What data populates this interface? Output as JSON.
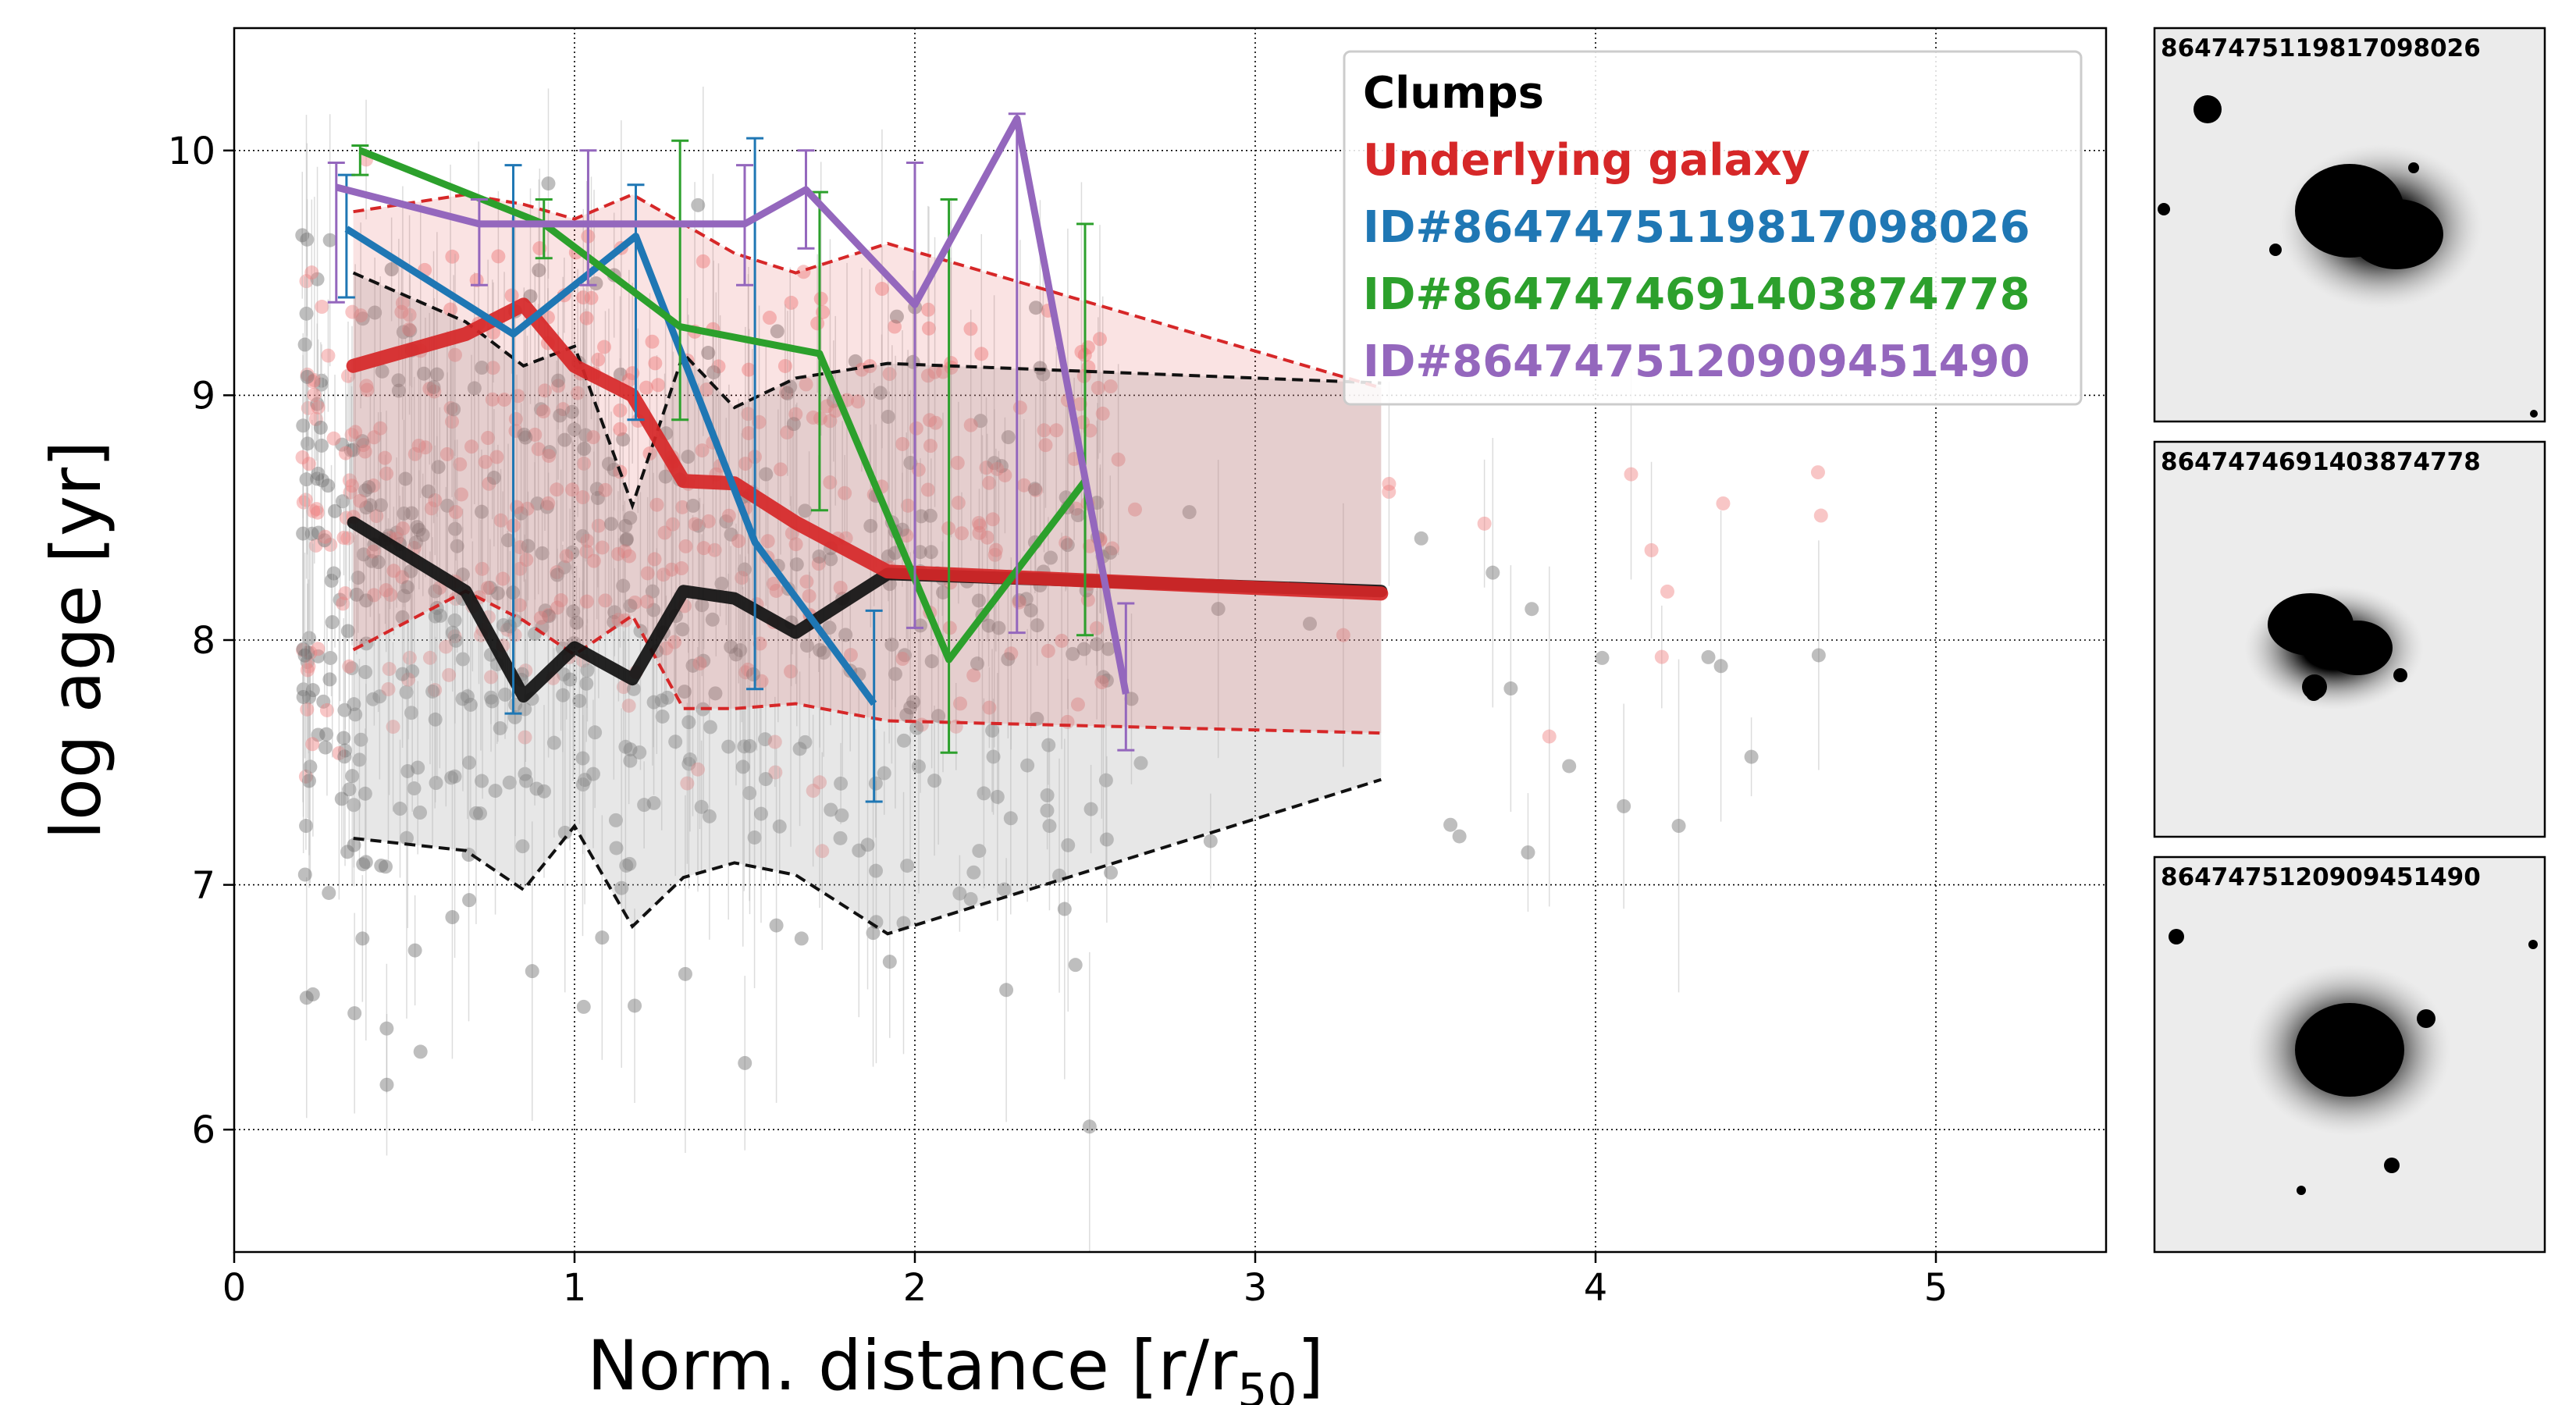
{
  "chart_data": {
    "type": "scatter",
    "xlabel": "Norm. distance [r/r",
    "xlabel_sub": "50",
    "xlabel_end": "]",
    "ylabel": "log age [yr]",
    "xlim": [
      0,
      5.5
    ],
    "ylim": [
      5.5,
      10.5
    ],
    "x_ticks": [
      0,
      1,
      2,
      3,
      4,
      5
    ],
    "y_ticks": [
      6,
      7,
      8,
      9,
      10
    ],
    "grid": true,
    "legend_position": "top-right",
    "legend": [
      {
        "label": "Clumps",
        "color": "#000000"
      },
      {
        "label": "Underlying galaxy",
        "color": "#d62728"
      },
      {
        "label": "ID#8647475119817098026",
        "color": "#1f77b4"
      },
      {
        "label": "ID#8647474691403874778",
        "color": "#2ca02c"
      },
      {
        "label": "ID#8647475120909451490",
        "color": "#9467bd"
      }
    ],
    "clumps_median": {
      "color": "#111111",
      "x": [
        0.35,
        0.68,
        0.85,
        1.0,
        1.17,
        1.32,
        1.47,
        1.65,
        1.92,
        3.37
      ],
      "y": [
        8.48,
        8.2,
        7.77,
        7.97,
        7.84,
        8.2,
        8.17,
        8.03,
        8.27,
        8.2
      ]
    },
    "clumps_band": {
      "color": "#000000",
      "x": [
        0.35,
        0.68,
        0.85,
        1.0,
        1.17,
        1.32,
        1.47,
        1.65,
        1.92,
        3.37
      ],
      "upper": [
        9.5,
        9.3,
        9.12,
        9.2,
        8.55,
        9.17,
        8.95,
        9.07,
        9.13,
        9.05
      ],
      "lower": [
        7.19,
        7.14,
        6.98,
        7.24,
        6.83,
        7.03,
        7.09,
        7.04,
        6.8,
        7.43
      ]
    },
    "underlying_median": {
      "color": "#d62728",
      "x": [
        0.35,
        0.68,
        0.85,
        1.0,
        1.17,
        1.32,
        1.47,
        1.65,
        1.92,
        3.37
      ],
      "y": [
        9.12,
        9.25,
        9.37,
        9.12,
        9.0,
        8.65,
        8.64,
        8.48,
        8.28,
        8.19
      ]
    },
    "underlying_band": {
      "color": "#d62728",
      "x": [
        0.35,
        0.68,
        0.85,
        1.0,
        1.17,
        1.32,
        1.47,
        1.65,
        1.92,
        3.37
      ],
      "upper": [
        9.75,
        9.82,
        9.78,
        9.72,
        9.82,
        9.7,
        9.58,
        9.5,
        9.62,
        9.03
      ],
      "lower": [
        7.96,
        8.2,
        8.08,
        7.94,
        8.1,
        7.72,
        7.72,
        7.74,
        7.67,
        7.62
      ]
    },
    "id_series": [
      {
        "name": "ID#8647475119817098026",
        "color": "#1f77b4",
        "x": [
          0.33,
          0.82,
          1.18,
          1.53,
          1.88
        ],
        "y": [
          9.68,
          9.25,
          9.65,
          8.4,
          7.74
        ],
        "err_low": [
          9.4,
          7.7,
          8.9,
          7.8,
          7.34
        ],
        "err_high": [
          9.9,
          9.94,
          9.86,
          10.05,
          8.12
        ]
      },
      {
        "name": "ID#8647474691403874778",
        "color": "#2ca02c",
        "x": [
          0.37,
          0.91,
          1.31,
          1.72,
          2.1,
          2.5
        ],
        "y": [
          10.0,
          9.7,
          9.28,
          9.17,
          7.92,
          8.65
        ],
        "err_low": [
          9.9,
          9.56,
          8.9,
          8.53,
          7.54,
          8.02
        ],
        "err_high": [
          10.02,
          9.8,
          10.04,
          9.83,
          9.8,
          9.7
        ]
      },
      {
        "name": "ID#8647475120909451490",
        "color": "#9467bd",
        "x": [
          0.3,
          0.72,
          1.04,
          1.5,
          1.68,
          2.0,
          2.3,
          2.62
        ],
        "y": [
          9.85,
          9.7,
          9.7,
          9.7,
          9.84,
          9.37,
          10.13,
          7.78
        ],
        "err_low": [
          9.38,
          9.45,
          9.45,
          9.45,
          9.6,
          8.05,
          8.03,
          7.55
        ],
        "err_high": [
          9.95,
          9.8,
          10.0,
          9.94,
          10.0,
          9.95,
          10.15,
          8.15
        ]
      }
    ]
  },
  "side_panels": [
    {
      "id_label": "8647475119817098026"
    },
    {
      "id_label": "8647474691403874778"
    },
    {
      "id_label": "8647475120909451490"
    }
  ]
}
